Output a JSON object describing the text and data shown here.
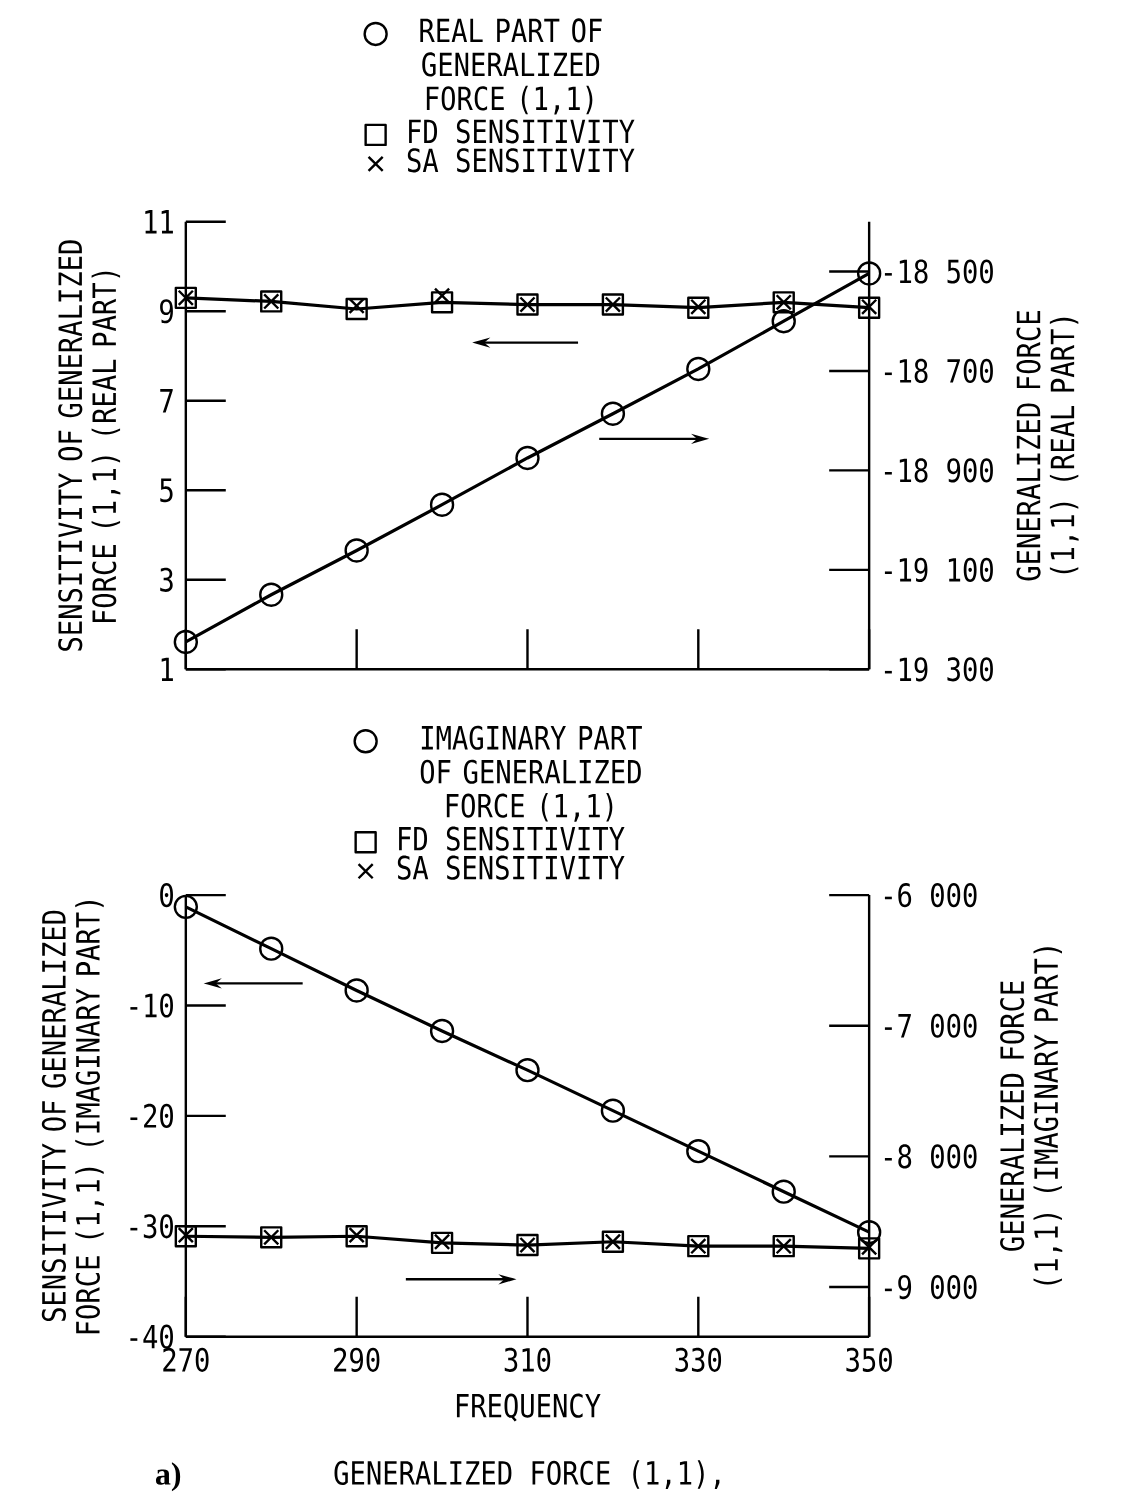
{
  "chart_data": [
    {
      "type": "line",
      "legend": "top",
      "tick_labels": "y",
      "ylabel": "SENSITIVITY OF GENERALIZED FORCE (1,1) (REAL PART)",
      "y2label": "GENERALIZED FORCE (1,1) (REAL PART)",
      "x": [
        270,
        280,
        290,
        300,
        310,
        320,
        330,
        340,
        350
      ],
      "xlim": [
        270,
        350
      ],
      "xticks": [
        270,
        290,
        310,
        330,
        350
      ],
      "ylim": [
        1,
        11
      ],
      "yticks": [
        1,
        3,
        5,
        7,
        9,
        11
      ],
      "y2lim": [
        -19300,
        -18400
      ],
      "y2ticks": [
        {
          "value": -19300,
          "label": "-19 300"
        },
        {
          "value": -19100,
          "label": "-19 100"
        },
        {
          "value": -18900,
          "label": "-18 900"
        },
        {
          "value": -18700,
          "label": "-18 700"
        },
        {
          "value": -18500,
          "label": "-18 500"
        }
      ],
      "line_style": "solid",
      "series": [
        {
          "name": "REAL PART OF GENERALIZED FORCE (1,1)",
          "color": "#000000",
          "axis": "y2",
          "marker": "circle",
          "values": [
            -19245,
            -19150,
            -19061,
            -18969,
            -18875,
            -18786,
            -18696,
            -18600,
            -18504
          ]
        },
        {
          "name": "FD SENSITIVITY",
          "color": "#000000",
          "marker": "square",
          "values": [
            9.3,
            9.22,
            9.05,
            9.2,
            9.15,
            9.15,
            9.08,
            9.2,
            9.08
          ]
        },
        {
          "name": "SA SENSITIVITY",
          "type": "scatter",
          "color": "#000000",
          "marker": "cross",
          "values": [
            9.3,
            9.22,
            9.12,
            9.35,
            9.15,
            9.15,
            9.1,
            9.2,
            9.1
          ]
        }
      ]
    },
    {
      "type": "line",
      "legend": "top",
      "xlabel": "FREQUENCY",
      "ylabel": "SENSITIVITY OF GENERALIZED FORCE (1,1) (IMAGINARY PART)",
      "y2label": "GENERALIZED FORCE (1,1) (IMAGINARY PART)",
      "x": [
        270,
        280,
        290,
        300,
        310,
        320,
        330,
        340,
        350
      ],
      "xlim": [
        270,
        350
      ],
      "xticks": [
        270,
        290,
        310,
        330,
        350
      ],
      "ylim": [
        -40,
        0
      ],
      "yticks": [
        -40,
        -30,
        -20,
        -10,
        0
      ],
      "y2lim": [
        -9380,
        -6000
      ],
      "y2ticks": [
        {
          "value": -9000,
          "label": "-9 000"
        },
        {
          "value": -8000,
          "label": "-8 000"
        },
        {
          "value": -7000,
          "label": "-7 000"
        },
        {
          "value": -6000,
          "label": "-6 000"
        }
      ],
      "line_style": "solid",
      "annotations": [
        "a)",
        "GENERALIZED FORCE (1,1),"
      ],
      "series": [
        {
          "name": "IMAGINARY PART OF GENERALIZED FORCE (1,1)",
          "color": "#000000",
          "axis": "y2",
          "marker": "circle",
          "values": [
            -6090,
            -6410,
            -6730,
            -7040,
            -7340,
            -7650,
            -7960,
            -8270,
            -8580
          ]
        },
        {
          "name": "FD SENSITIVITY",
          "color": "#000000",
          "marker": "square",
          "values": [
            -30.9,
            -31.0,
            -30.9,
            -31.5,
            -31.7,
            -31.4,
            -31.8,
            -31.8,
            -32.0
          ]
        },
        {
          "name": "SA SENSITIVITY",
          "type": "scatter",
          "color": "#000000",
          "marker": "cross",
          "values": [
            -30.8,
            -31.0,
            -30.8,
            -31.4,
            -31.7,
            -31.4,
            -31.8,
            -31.8,
            -31.9
          ]
        }
      ]
    }
  ]
}
